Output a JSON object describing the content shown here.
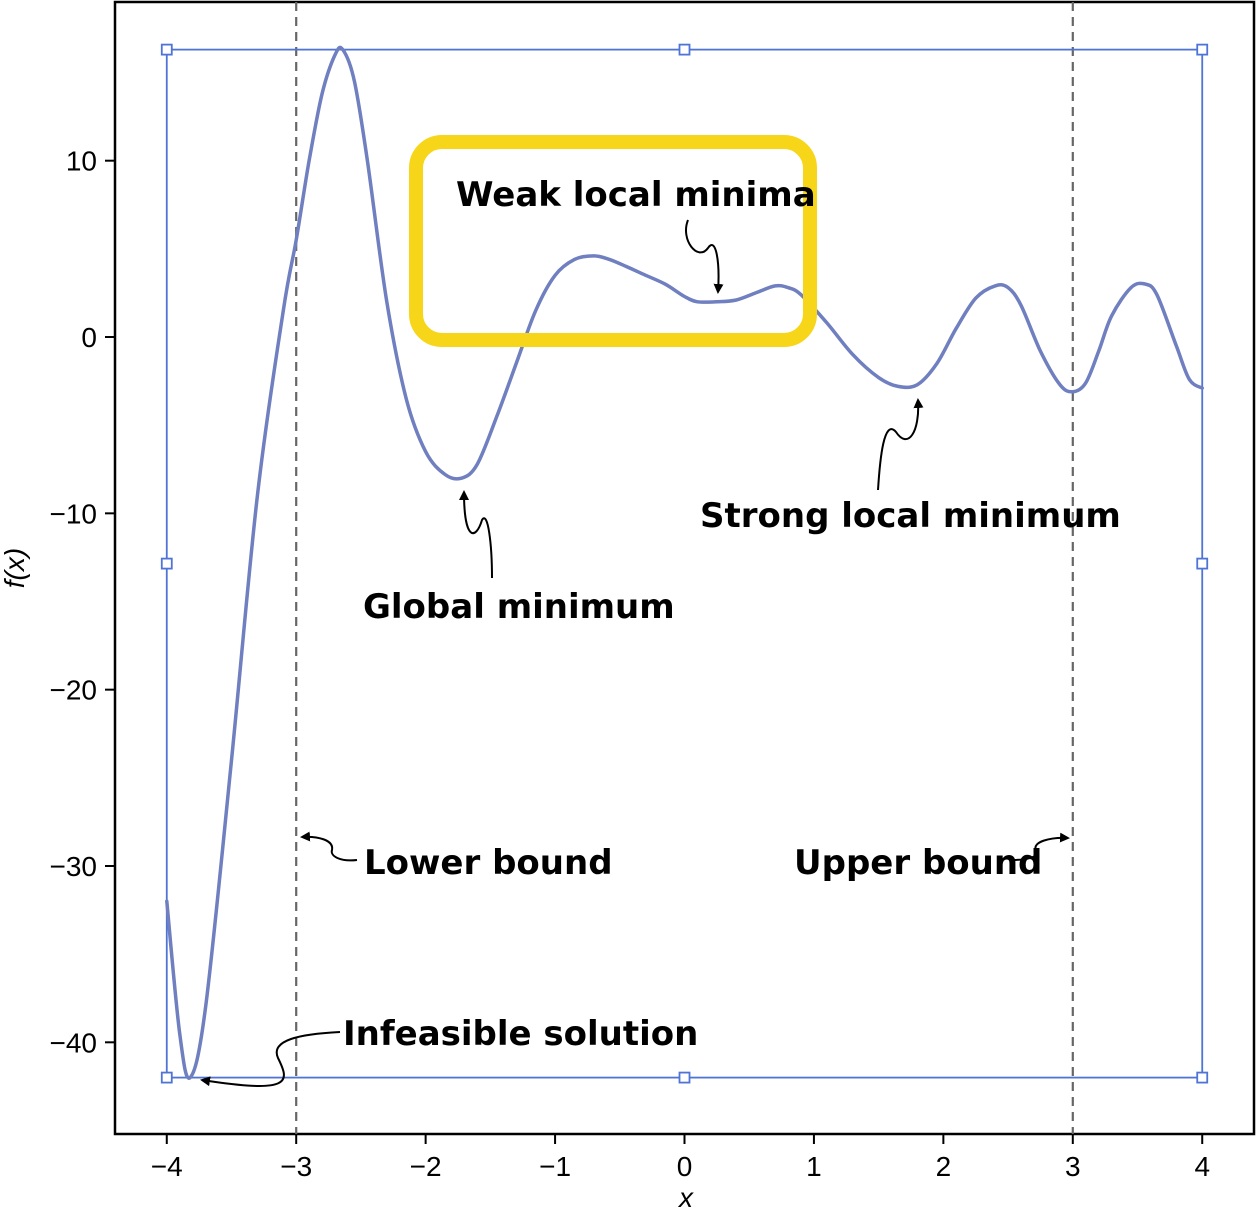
{
  "chart_data": {
    "type": "line",
    "xlabel": "x",
    "ylabel": "f(x)",
    "xlim": [
      -4.4,
      4.4
    ],
    "ylim": [
      -45.2,
      19.0
    ],
    "xticks": [
      -4,
      -3,
      -2,
      -1,
      0,
      1,
      2,
      3,
      4
    ],
    "xtick_labels": [
      "−4",
      "−3",
      "−2",
      "−1",
      "0",
      "1",
      "2",
      "3",
      "4"
    ],
    "yticks": [
      -40,
      -30,
      -20,
      -10,
      0,
      10
    ],
    "ytick_labels": [
      "−40",
      "−30",
      "−20",
      "−10",
      "0",
      "10"
    ],
    "grid": false,
    "series": [
      {
        "color": "#6f7fbf",
        "x": [
          -4.0,
          -3.9,
          -3.82,
          -3.7,
          -3.5,
          -3.3,
          -3.1,
          -3.0,
          -2.9,
          -2.8,
          -2.7,
          -2.64,
          -2.55,
          -2.45,
          -2.3,
          -2.15,
          -2.0,
          -1.85,
          -1.72,
          -1.6,
          -1.45,
          -1.3,
          -1.15,
          -1.0,
          -0.85,
          -0.7,
          -0.58,
          -0.45,
          -0.3,
          -0.15,
          0.0,
          0.1,
          0.25,
          0.4,
          0.55,
          0.7,
          0.8,
          0.9,
          1.1,
          1.3,
          1.5,
          1.65,
          1.8,
          1.95,
          2.1,
          2.25,
          2.4,
          2.5,
          2.6,
          2.75,
          2.9,
          3.0,
          3.1,
          3.2,
          3.3,
          3.45,
          3.56,
          3.65,
          3.8,
          3.9,
          4.0
        ],
        "y": [
          -32,
          -39.5,
          -42,
          -38,
          -24,
          -9,
          1.5,
          5.5,
          10,
          13.8,
          16,
          16.3,
          14.5,
          10,
          2.0,
          -3.5,
          -6.5,
          -7.8,
          -8.0,
          -7.2,
          -4.5,
          -1.5,
          1.5,
          3.5,
          4.4,
          4.6,
          4.4,
          4.0,
          3.5,
          3.0,
          2.3,
          2.0,
          2.0,
          2.1,
          2.5,
          2.9,
          2.8,
          2.4,
          0.8,
          -1.0,
          -2.3,
          -2.8,
          -2.7,
          -1.5,
          0.5,
          2.2,
          2.9,
          2.8,
          1.8,
          -0.8,
          -2.7,
          -3.1,
          -2.6,
          -0.8,
          1.2,
          2.8,
          3.0,
          2.4,
          -0.5,
          -2.4,
          -2.9
        ]
      }
    ],
    "vlines": [
      {
        "x": -3,
        "style": "dashed",
        "color": "#666666"
      },
      {
        "x": 3,
        "style": "dashed",
        "color": "#666666"
      }
    ],
    "bounding_box": {
      "x_range": [
        -4,
        4
      ],
      "y_range": [
        -42,
        16.3
      ],
      "color": "#4f74d6"
    },
    "highlight_color": "#f7d619",
    "annotations": [
      {
        "text": "Weak local minima",
        "target": [
          0.25,
          2.0
        ]
      },
      {
        "text": "Global minimum",
        "target": [
          -1.72,
          -8.0
        ]
      },
      {
        "text": "Strong local minimum",
        "target": [
          1.8,
          -2.8
        ]
      },
      {
        "text": "Lower bound",
        "target": [
          -3.0,
          -28.0
        ]
      },
      {
        "text": "Upper bound",
        "target": [
          3.0,
          -28.0
        ]
      },
      {
        "text": "Infeasible solution",
        "target": [
          -3.82,
          -42.0
        ]
      }
    ]
  }
}
